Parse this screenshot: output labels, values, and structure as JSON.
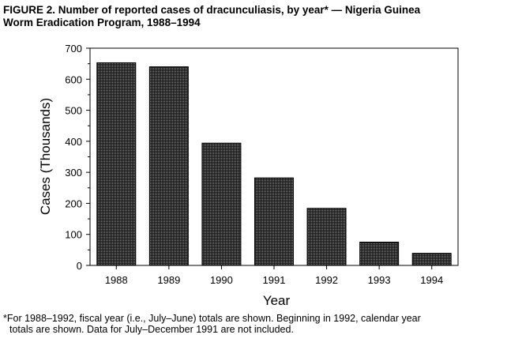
{
  "figure": {
    "label": "FIGURE 2.",
    "title_line1": "Number of reported cases of dracunculiasis, by year* — Nigeria Guinea",
    "title_line2": "Worm Eradication Program, 1988–1994"
  },
  "footnote": {
    "line1": "*For 1988–1992, fiscal year (i.e., July–June) totals are shown. Beginning in 1992, calendar year",
    "line2": "totals are shown. Data for July–December 1991 are not included."
  },
  "chart_data": {
    "type": "bar",
    "categories": [
      "1988",
      "1989",
      "1990",
      "1991",
      "1992",
      "1993",
      "1994"
    ],
    "values": [
      653,
      640,
      394,
      282,
      184,
      75,
      39
    ],
    "xlabel": "Year",
    "ylabel": "Cases (Thousands)",
    "ylim": [
      0,
      700
    ],
    "yticks": [
      0,
      100,
      200,
      300,
      400,
      500,
      600,
      700
    ],
    "grid": false,
    "bar_fill": "#3a3a3a",
    "bar_stroke": "#000000"
  }
}
